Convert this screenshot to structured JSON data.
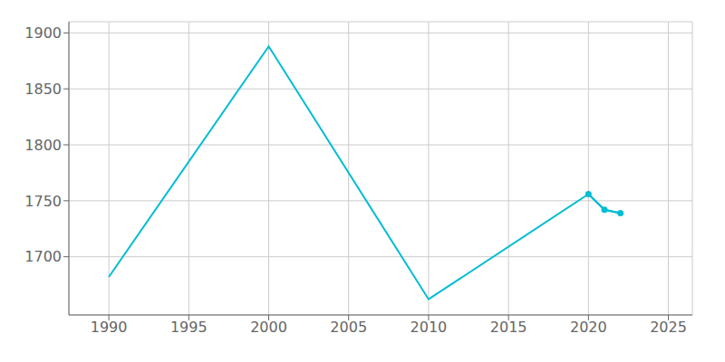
{
  "chart_data": {
    "type": "line",
    "x": [
      1990,
      2000,
      2010,
      2020,
      2021,
      2022
    ],
    "series": [
      {
        "color": "#00bcd4",
        "marker": "none",
        "values": [
          1682,
          1888,
          1662,
          1756,
          1742,
          1739
        ]
      },
      {
        "color": "#00bcd4",
        "marker": "circle",
        "values": [
          null,
          null,
          null,
          1756,
          1742,
          1739
        ]
      }
    ],
    "xlim": [
      1987.5,
      2026.5
    ],
    "ylim": [
      1648,
      1910
    ],
    "xticks": [
      1990,
      1995,
      2000,
      2005,
      2010,
      2015,
      2020,
      2025
    ],
    "yticks": [
      1700,
      1750,
      1800,
      1850,
      1900
    ],
    "grid": true
  }
}
